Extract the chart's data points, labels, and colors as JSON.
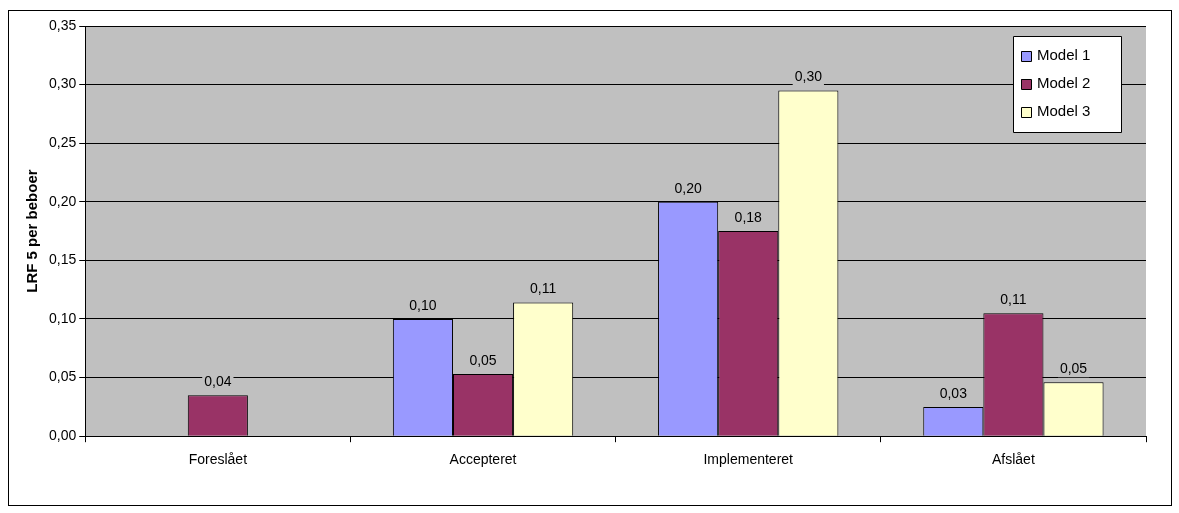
{
  "chart_data": {
    "type": "bar",
    "ylabel": "LRF 5 per beboer",
    "categories": [
      "Foreslået",
      "Accepteret",
      "Implementeret",
      "Afslået"
    ],
    "series": [
      {
        "name": "Model 1",
        "color": "#9999ff",
        "values": [
          null,
          0.1,
          0.2,
          0.025
        ],
        "value_labels": [
          null,
          "0,10",
          "0,20",
          "0,03"
        ]
      },
      {
        "name": "Model 2",
        "color": "#993366",
        "values": [
          0.035,
          0.053,
          0.175,
          0.105
        ],
        "value_labels": [
          "0,04",
          "0,05",
          "0,18",
          "0,11"
        ]
      },
      {
        "name": "Model 3",
        "color": "#ffffcc",
        "values": [
          null,
          0.114,
          0.295,
          0.046
        ],
        "value_labels": [
          null,
          "0,11",
          "0,30",
          "0,05"
        ]
      }
    ],
    "ylim": [
      0,
      0.35
    ],
    "yticks": [
      {
        "value": 0,
        "label": "0,00"
      },
      {
        "value": 0.05,
        "label": "0,05"
      },
      {
        "value": 0.1,
        "label": "0,10"
      },
      {
        "value": 0.15,
        "label": "0,15"
      },
      {
        "value": 0.2,
        "label": "0,20"
      },
      {
        "value": 0.25,
        "label": "0,25"
      },
      {
        "value": 0.3,
        "label": "0,30"
      },
      {
        "value": 0.35,
        "label": "0,35"
      }
    ],
    "grid": "y",
    "legend": "top right"
  }
}
